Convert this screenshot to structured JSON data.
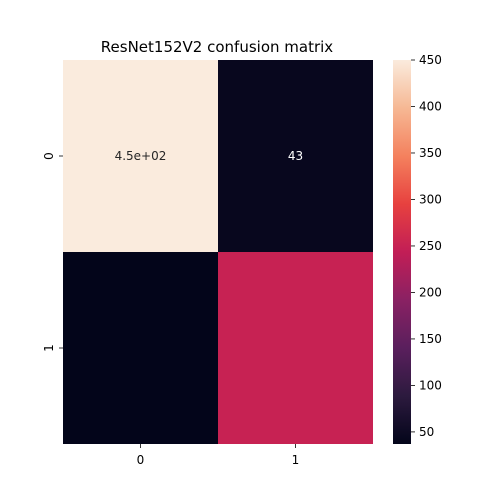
{
  "chart_data": {
    "type": "heatmap",
    "title": "ResNet152V2 confusion matrix",
    "x_categories": [
      "0",
      "1"
    ],
    "y_categories": [
      "0",
      "1"
    ],
    "values": [
      [
        450,
        43
      ],
      [
        37,
        250
      ]
    ],
    "annotations": [
      [
        "4.5e+02",
        "43"
      ],
      [
        "",
        ""
      ]
    ],
    "colorbar": {
      "min": 37,
      "max": 450,
      "ticks": [
        50,
        100,
        150,
        200,
        250,
        300,
        350,
        400,
        450
      ],
      "tick_labels": [
        "50",
        "100",
        "150",
        "200",
        "250",
        "300",
        "350",
        "400",
        "450"
      ]
    },
    "colormap": "rocket",
    "grid": false
  }
}
